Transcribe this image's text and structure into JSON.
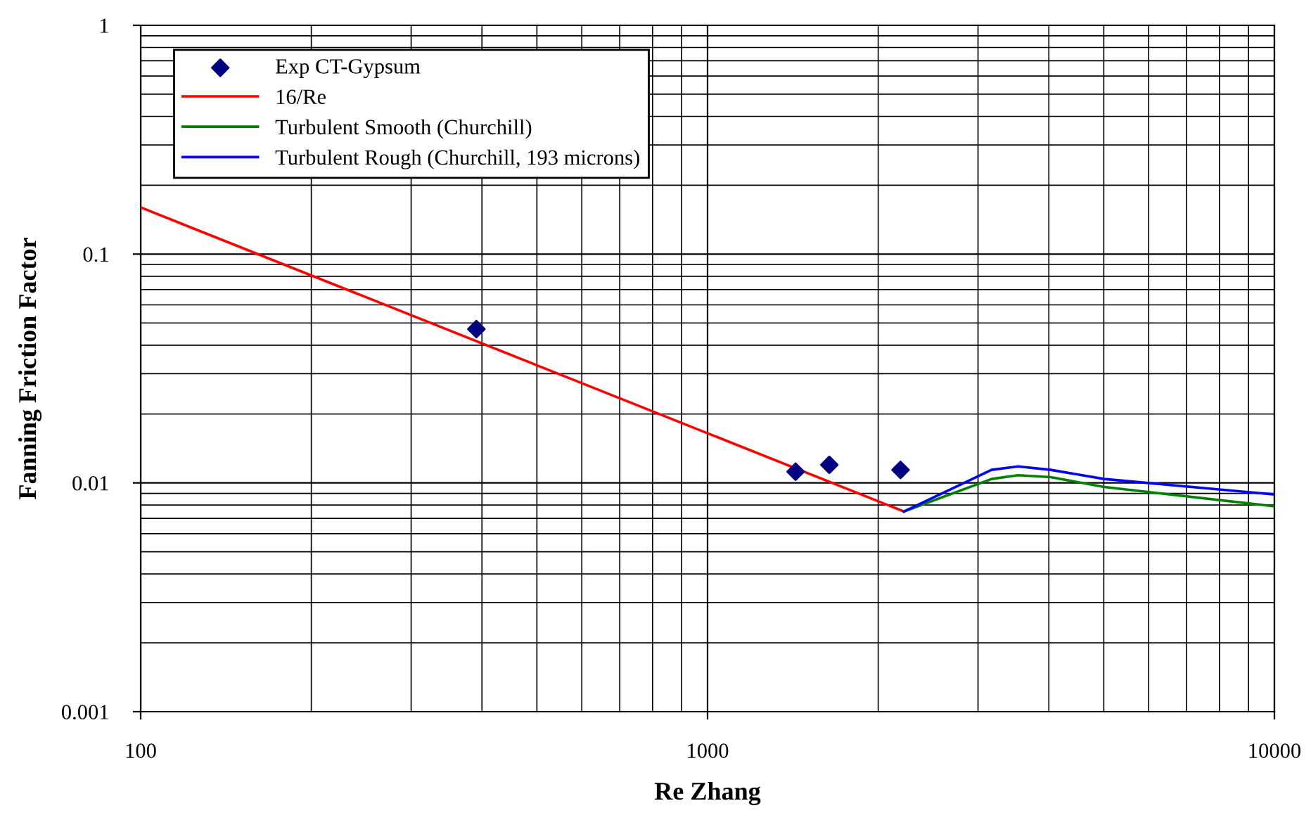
{
  "chart_data": {
    "type": "line",
    "xlabel": "Re Zhang",
    "ylabel": "Fanning Friction Factor",
    "log": "xy",
    "xlim": [
      100,
      10000
    ],
    "ylim": [
      0.001,
      1
    ],
    "xticks": [
      100,
      1000,
      10000
    ],
    "yticks": [
      0.001,
      0.01,
      0.1,
      1
    ],
    "grid": true,
    "legend": "top left",
    "series": [
      {
        "name": "Exp CT-Gypsum",
        "type": "scatter",
        "marker": "diamond",
        "color": "#000080",
        "x": [
          391,
          1430,
          1640,
          2190
        ],
        "values": [
          0.047,
          0.0112,
          0.012,
          0.0114
        ]
      },
      {
        "name": "16/Re",
        "color": "#ff0000",
        "x": [
          100,
          2220
        ],
        "values": [
          0.16,
          0.0075
        ]
      },
      {
        "name": "Turbulent Smooth (Churchill)",
        "color": "#008000",
        "x": [
          2220,
          3170,
          3530,
          4030,
          5010,
          10000
        ],
        "values": [
          0.0075,
          0.0104,
          0.0108,
          0.0106,
          0.0096,
          0.0079
        ]
      },
      {
        "name": "Turbulent Rough (Churchill, 193 microns)",
        "color": "#0000ff",
        "x": [
          2220,
          3170,
          3530,
          4030,
          5010,
          10000
        ],
        "values": [
          0.0075,
          0.0114,
          0.0118,
          0.0114,
          0.0104,
          0.0089
        ]
      }
    ]
  }
}
